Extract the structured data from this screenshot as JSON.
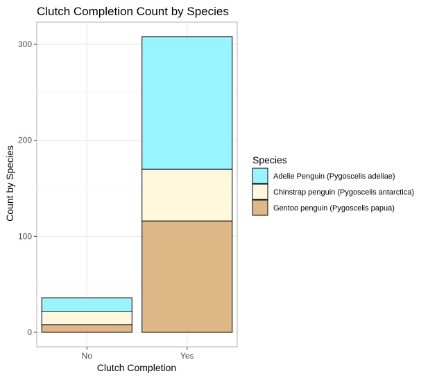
{
  "chart_data": {
    "type": "bar",
    "stacked": true,
    "title": "Clutch Completion Count by Species",
    "xlabel": "Clutch Completion",
    "ylabel": "Count by Species",
    "categories": [
      "No",
      "Yes"
    ],
    "ylim": [
      0,
      320
    ],
    "yticks": [
      0,
      100,
      200,
      300
    ],
    "grid": true,
    "legend": {
      "title": "Species",
      "position": "right"
    },
    "series": [
      {
        "name": "Gentoo penguin (Pygoscelis papua)",
        "values": [
          8,
          116
        ],
        "color": "#DEB887"
      },
      {
        "name": "Chinstrap penguin (Pygoscelis antarctica)",
        "values": [
          14,
          54
        ],
        "color": "#FFF8DC"
      },
      {
        "name": "Adelie Penguin (Pygoscelis adeliae)",
        "values": [
          14,
          138
        ],
        "color": "#98F5FF"
      }
    ],
    "legend_order": [
      2,
      1,
      0
    ]
  }
}
